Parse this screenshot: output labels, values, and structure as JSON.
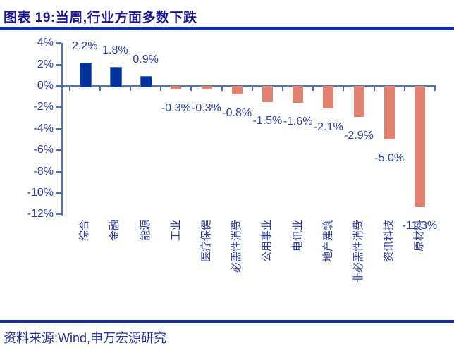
{
  "figure": {
    "title": "图表 19:当周,行业方面多数下跌",
    "source": "资料来源:Wind,申万宏源研究"
  },
  "chart_data": {
    "type": "bar",
    "title": "当周,行业方面多数下跌",
    "categories": [
      "综合",
      "金融",
      "能源",
      "工业",
      "医疗保健",
      "必需性消费",
      "公用事业",
      "电讯业",
      "地产建筑",
      "非必需性消费",
      "资讯科技",
      "原材料"
    ],
    "values": [
      2.2,
      1.8,
      0.9,
      -0.3,
      -0.3,
      -0.8,
      -1.5,
      -1.6,
      -2.1,
      -2.9,
      -5.0,
      -11.3
    ],
    "data_labels": [
      "2.2%",
      "1.8%",
      "0.9%",
      "-0.3%",
      "-0.3%",
      "-0.8%",
      "-1.5%",
      "-1.6%",
      "-2.1%",
      "-2.9%",
      "-5.0%",
      "-11.3%"
    ],
    "ylim": [
      -12,
      4
    ],
    "ytick_step": 2,
    "ytick_labels": [
      "4%",
      "2%",
      "0%",
      "-2%",
      "-4%",
      "-6%",
      "-8%",
      "-10%",
      "-12%"
    ],
    "grid": false,
    "legend": false,
    "colors": {
      "positive_bar": "#04339c",
      "negative_bar": "#e08172",
      "axis": "#4a73c9",
      "labels": "#2b3fa0",
      "title": "#1a1a8f",
      "rule": "#0a31a8"
    }
  }
}
